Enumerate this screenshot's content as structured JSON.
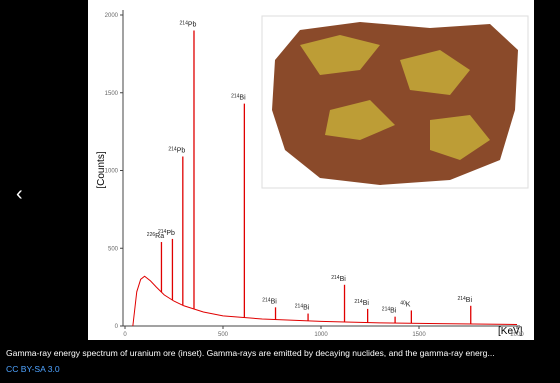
{
  "chart_data": {
    "type": "spectrum",
    "xlabel": "[KeV]",
    "ylabel": "[Counts]",
    "xlim": [
      0,
      2000
    ],
    "ylim": [
      0,
      2000
    ],
    "xticks": [
      0,
      500,
      1000,
      1500,
      2000
    ],
    "yticks": [
      0,
      500,
      1000,
      1500,
      2000
    ],
    "color": "#e00000",
    "x": [
      40,
      60,
      80,
      100,
      130,
      160,
      200,
      250,
      300,
      400,
      500,
      700,
      1000,
      1300,
      1600,
      2000
    ],
    "values": [
      0,
      220,
      300,
      320,
      290,
      250,
      200,
      160,
      130,
      90,
      65,
      45,
      30,
      20,
      15,
      10
    ],
    "peaks": [
      {
        "energy": 186,
        "value": 540,
        "mass": "226",
        "element": "Ra"
      },
      {
        "energy": 242,
        "value": 560,
        "mass": "214",
        "element": "Pb"
      },
      {
        "energy": 295,
        "value": 1090,
        "mass": "214",
        "element": "Pb"
      },
      {
        "energy": 352,
        "value": 1900,
        "mass": "214",
        "element": "Pb"
      },
      {
        "energy": 609,
        "value": 1430,
        "mass": "214",
        "element": "Bi"
      },
      {
        "energy": 768,
        "value": 120,
        "mass": "214",
        "element": "Bi"
      },
      {
        "energy": 934,
        "value": 80,
        "mass": "214",
        "element": "Bi"
      },
      {
        "energy": 1120,
        "value": 265,
        "mass": "214",
        "element": "Bi"
      },
      {
        "energy": 1238,
        "value": 110,
        "mass": "214",
        "element": "Bi"
      },
      {
        "energy": 1378,
        "value": 60,
        "mass": "214",
        "element": "Bi"
      },
      {
        "energy": 1461,
        "value": 100,
        "mass": "40",
        "element": "K"
      },
      {
        "energy": 1764,
        "value": 130,
        "mass": "214",
        "element": "Bi"
      }
    ]
  },
  "caption": "Gamma-ray energy spectrum of uranium ore (inset). Gamma-rays are emitted by decaying nuclides, and the gamma-ray energ...",
  "license": "CC BY-SA 3.0"
}
